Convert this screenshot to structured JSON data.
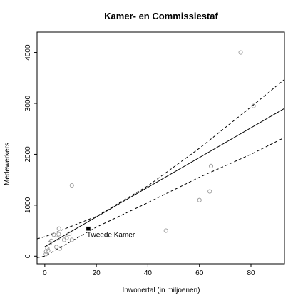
{
  "chart_data": {
    "type": "scatter",
    "title": "Kamer- en Commissiestaf",
    "xlabel": "Inwonertal (in miljoenen)",
    "ylabel": "Medewerkers",
    "xlim": [
      -3,
      93
    ],
    "ylim": [
      -150,
      4400
    ],
    "xticks": [
      0,
      20,
      40,
      60,
      80
    ],
    "yticks": [
      0,
      1000,
      2000,
      3000,
      4000
    ],
    "grid": false,
    "points": [
      {
        "x": 0.4,
        "y": 40
      },
      {
        "x": 0.5,
        "y": 90
      },
      {
        "x": 1.0,
        "y": 150
      },
      {
        "x": 1.3,
        "y": 110
      },
      {
        "x": 2.0,
        "y": 260
      },
      {
        "x": 2.5,
        "y": 300
      },
      {
        "x": 3.5,
        "y": 420
      },
      {
        "x": 4.5,
        "y": 180
      },
      {
        "x": 5.0,
        "y": 350
      },
      {
        "x": 5.4,
        "y": 430
      },
      {
        "x": 5.5,
        "y": 540
      },
      {
        "x": 5.8,
        "y": 150
      },
      {
        "x": 7.5,
        "y": 320
      },
      {
        "x": 8.5,
        "y": 360
      },
      {
        "x": 9.5,
        "y": 440
      },
      {
        "x": 10.5,
        "y": 1390
      },
      {
        "x": 10.5,
        "y": 320
      },
      {
        "x": 47,
        "y": 500
      },
      {
        "x": 60,
        "y": 1100
      },
      {
        "x": 64,
        "y": 1270
      },
      {
        "x": 64.5,
        "y": 1770
      },
      {
        "x": 76,
        "y": 4000
      },
      {
        "x": 81,
        "y": 2950
      }
    ],
    "highlight": {
      "x": 16.9,
      "y": 540,
      "label": "Tweede Kamer"
    },
    "fit_line": {
      "intercept": 185,
      "slope": 29.2
    },
    "confidence_upper": [
      {
        "x": -3,
        "y": 340
      },
      {
        "x": 0,
        "y": 380
      },
      {
        "x": 20,
        "y": 780
      },
      {
        "x": 40,
        "y": 1380
      },
      {
        "x": 60,
        "y": 2120
      },
      {
        "x": 80,
        "y": 2930
      },
      {
        "x": 93,
        "y": 3470
      }
    ],
    "confidence_lower": [
      {
        "x": -3,
        "y": -30
      },
      {
        "x": 0,
        "y": 0
      },
      {
        "x": 20,
        "y": 570
      },
      {
        "x": 40,
        "y": 1050
      },
      {
        "x": 60,
        "y": 1550
      },
      {
        "x": 80,
        "y": 2000
      },
      {
        "x": 93,
        "y": 2330
      }
    ]
  }
}
